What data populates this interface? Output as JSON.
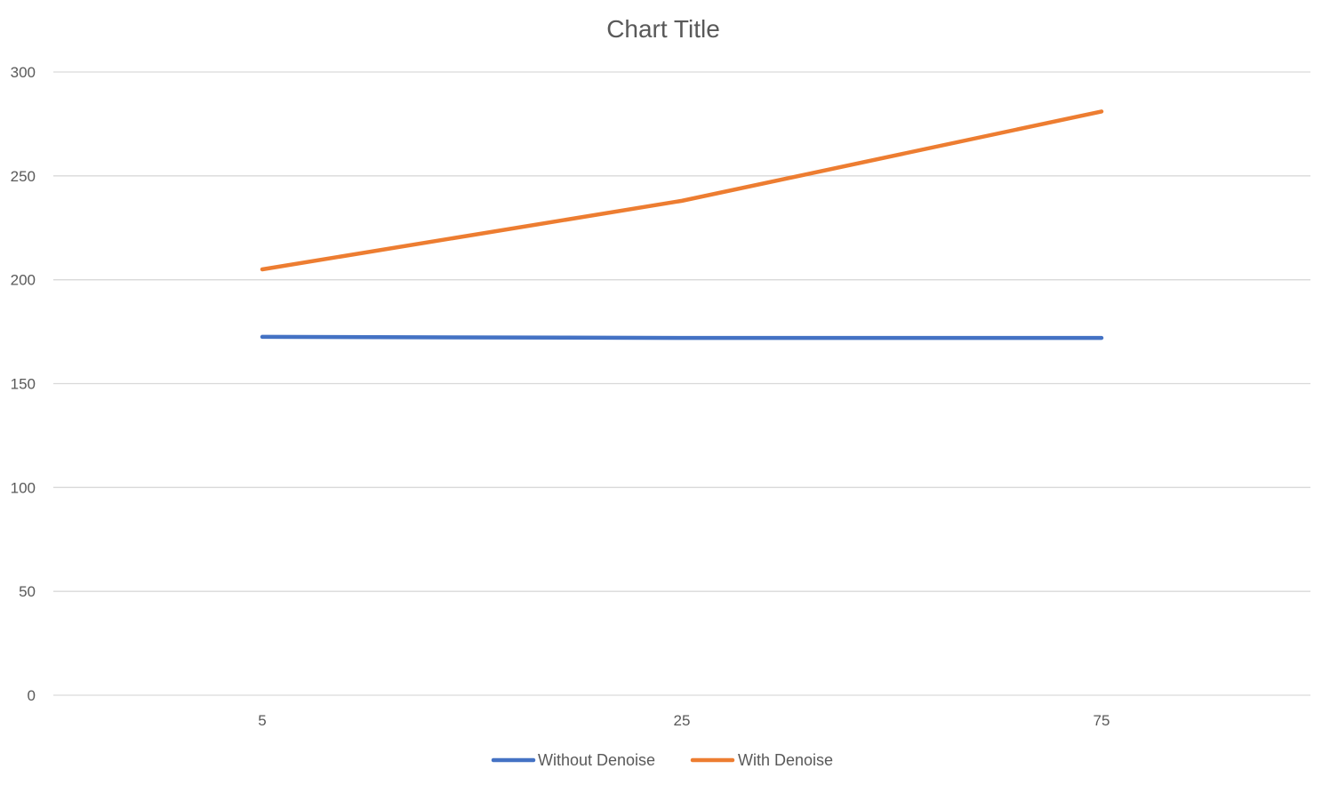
{
  "chart_data": {
    "type": "line",
    "title": "Chart Title",
    "xlabel": "",
    "ylabel": "",
    "categories": [
      "5",
      "25",
      "75"
    ],
    "ylim": [
      0,
      300
    ],
    "yticks": [
      "0",
      "50",
      "100",
      "150",
      "200",
      "250",
      "300"
    ],
    "grid": true,
    "legend_position": "bottom",
    "series": [
      {
        "name": "Without Denoise",
        "color": "#4472c4",
        "values": [
          172.5,
          172,
          172
        ]
      },
      {
        "name": "With Denoise",
        "color": "#ed7d31",
        "values": [
          205,
          238,
          281
        ]
      }
    ]
  }
}
